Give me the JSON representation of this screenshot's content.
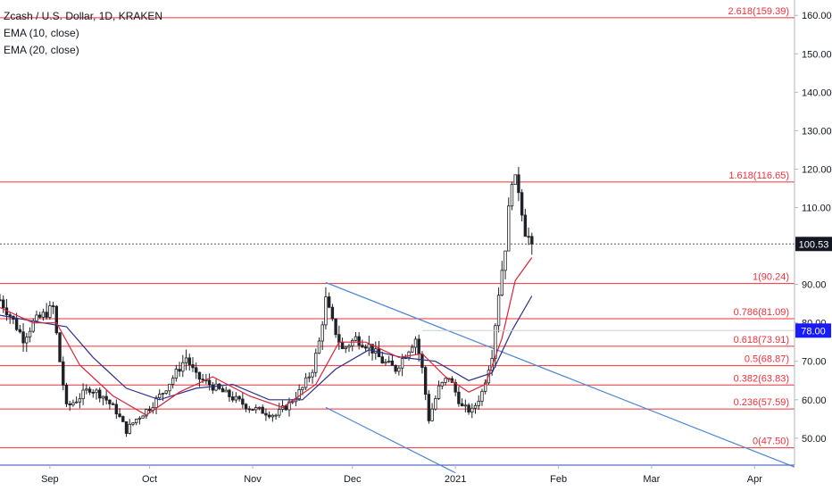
{
  "legend": {
    "title": "Zcash / U.S. Dollar, 1D, KRAKEN",
    "ema10": "EMA (10, close)",
    "ema20": "EMA (20, close)"
  },
  "colors": {
    "fib": "#f0303a",
    "trendline": "#4a86d8",
    "ema10": "#d8243a",
    "ema20": "#2b2f8c",
    "candle": "#1e2226",
    "price_badge_bg": "#131722",
    "alert_badge_bg": "#1a1aff"
  },
  "chart_data": {
    "type": "candlestick",
    "symbol": "Zcash / U.S. Dollar",
    "interval": "1D",
    "exchange": "KRAKEN",
    "x_labels": [
      "Sep",
      "Oct",
      "Nov",
      "Dec",
      "2021",
      "Feb",
      "Mar",
      "Apr"
    ],
    "x_label_dates": [
      "2020-09-01",
      "2020-10-01",
      "2020-11-01",
      "2020-12-01",
      "2021-01-01",
      "2021-02-01",
      "2021-03-01",
      "2021-04-01"
    ],
    "x_range": [
      "2020-08-17",
      "2021-04-13"
    ],
    "y_range": [
      43,
      164
    ],
    "y_ticks": [
      "160.00",
      "150.00",
      "140.00",
      "130.00",
      "120.00",
      "110.00",
      "100.00",
      "90.00",
      "80.00",
      "70.00",
      "60.00",
      "50.00"
    ],
    "last_price": "100.53",
    "alert_price": "78.00",
    "fib_levels": [
      {
        "label": "0(47.50)",
        "value": 47.5
      },
      {
        "label": "0.236(57.59)",
        "value": 57.59
      },
      {
        "label": "0.382(63.83)",
        "value": 63.83
      },
      {
        "label": "0.5(68.87)",
        "value": 68.87
      },
      {
        "label": "0.618(73.91)",
        "value": 73.91
      },
      {
        "label": "0.786(81.09)",
        "value": 81.09
      },
      {
        "label": "1(90.24)",
        "value": 90.24
      },
      {
        "label": "1.618(116.65)",
        "value": 116.65
      },
      {
        "label": "2.618(159.39)",
        "value": 159.39
      }
    ],
    "trendlines": [
      {
        "from": [
          "2020-11-23",
          90.5
        ],
        "to": [
          "2021-04-13",
          42.5
        ]
      },
      {
        "from": [
          "2020-11-23",
          58.0
        ],
        "to": [
          "2021-01-01",
          41.0
        ]
      }
    ],
    "price_path": [
      [
        "2020-08-17",
        86
      ],
      [
        "2020-08-20",
        82
      ],
      [
        "2020-08-24",
        76
      ],
      [
        "2020-08-27",
        80
      ],
      [
        "2020-08-30",
        82
      ],
      [
        "2020-09-02",
        84
      ],
      [
        "2020-09-04",
        70
      ],
      [
        "2020-09-06",
        58
      ],
      [
        "2020-09-09",
        60
      ],
      [
        "2020-09-13",
        63
      ],
      [
        "2020-09-17",
        61
      ],
      [
        "2020-09-21",
        57
      ],
      [
        "2020-09-24",
        52
      ],
      [
        "2020-09-27",
        55
      ],
      [
        "2020-10-01",
        58
      ],
      [
        "2020-10-05",
        62
      ],
      [
        "2020-10-09",
        67
      ],
      [
        "2020-10-12",
        71
      ],
      [
        "2020-10-15",
        66
      ],
      [
        "2020-10-19",
        64
      ],
      [
        "2020-10-23",
        62
      ],
      [
        "2020-10-27",
        60
      ],
      [
        "2020-10-31",
        58
      ],
      [
        "2020-11-04",
        57
      ],
      [
        "2020-11-08",
        56
      ],
      [
        "2020-11-12",
        59
      ],
      [
        "2020-11-16",
        63
      ],
      [
        "2020-11-19",
        68
      ],
      [
        "2020-11-21",
        75
      ],
      [
        "2020-11-23",
        86
      ],
      [
        "2020-11-25",
        80
      ],
      [
        "2020-11-28",
        73
      ],
      [
        "2020-12-02",
        76
      ],
      [
        "2020-12-06",
        74
      ],
      [
        "2020-12-10",
        70
      ],
      [
        "2020-12-14",
        68
      ],
      [
        "2020-12-17",
        72
      ],
      [
        "2020-12-20",
        76
      ],
      [
        "2020-12-22",
        68
      ],
      [
        "2020-12-24",
        55
      ],
      [
        "2020-12-27",
        63
      ],
      [
        "2020-12-30",
        66
      ],
      [
        "2021-01-03",
        58
      ],
      [
        "2021-01-06",
        57
      ],
      [
        "2021-01-09",
        62
      ],
      [
        "2021-01-12",
        72
      ],
      [
        "2021-01-14",
        88
      ],
      [
        "2021-01-16",
        100
      ],
      [
        "2021-01-18",
        118
      ],
      [
        "2021-01-20",
        115
      ],
      [
        "2021-01-22",
        104
      ],
      [
        "2021-01-24",
        100.53
      ]
    ],
    "ema10_path": [
      [
        "2020-08-17",
        84
      ],
      [
        "2020-08-27",
        80
      ],
      [
        "2020-09-03",
        80
      ],
      [
        "2020-09-10",
        69
      ],
      [
        "2020-09-20",
        61
      ],
      [
        "2020-09-30",
        56
      ],
      [
        "2020-10-10",
        62
      ],
      [
        "2020-10-20",
        66
      ],
      [
        "2020-10-31",
        61
      ],
      [
        "2020-11-10",
        58
      ],
      [
        "2020-11-20",
        64
      ],
      [
        "2020-11-27",
        75
      ],
      [
        "2020-12-05",
        75
      ],
      [
        "2020-12-15",
        71
      ],
      [
        "2020-12-22",
        72
      ],
      [
        "2020-12-29",
        66
      ],
      [
        "2021-01-05",
        62
      ],
      [
        "2021-01-10",
        64
      ],
      [
        "2021-01-15",
        76
      ],
      [
        "2021-01-19",
        91
      ],
      [
        "2021-01-24",
        97
      ]
    ],
    "ema20_path": [
      [
        "2020-08-17",
        82
      ],
      [
        "2020-08-30",
        80
      ],
      [
        "2020-09-06",
        79
      ],
      [
        "2020-09-14",
        71
      ],
      [
        "2020-09-24",
        63
      ],
      [
        "2020-10-04",
        60
      ],
      [
        "2020-10-15",
        63
      ],
      [
        "2020-10-26",
        64
      ],
      [
        "2020-11-06",
        60
      ],
      [
        "2020-11-16",
        60
      ],
      [
        "2020-11-26",
        68
      ],
      [
        "2020-12-06",
        73
      ],
      [
        "2020-12-16",
        71
      ],
      [
        "2020-12-26",
        70
      ],
      [
        "2021-01-05",
        65
      ],
      [
        "2021-01-12",
        67
      ],
      [
        "2021-01-18",
        78
      ],
      [
        "2021-01-24",
        87
      ]
    ]
  }
}
